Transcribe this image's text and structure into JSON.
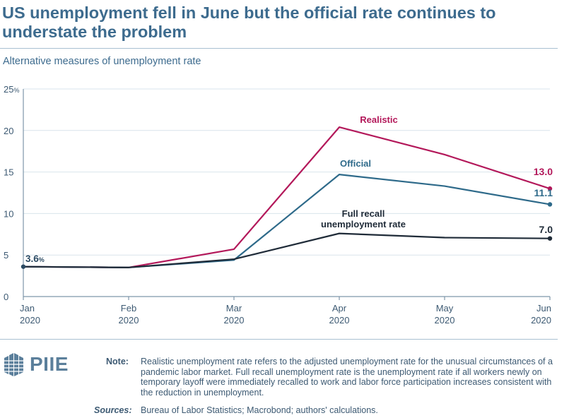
{
  "header": {
    "title": "US unemployment fell in June but the official rate continues to understate the problem",
    "subtitle": "Alternative measures of unemployment rate"
  },
  "chart_data": {
    "type": "line",
    "categories": [
      [
        "Jan",
        "2020"
      ],
      [
        "Feb",
        "2020"
      ],
      [
        "Mar",
        "2020"
      ],
      [
        "Apr",
        "2020"
      ],
      [
        "May",
        "2020"
      ],
      [
        "Jun",
        "2020"
      ]
    ],
    "ylim": [
      0,
      25
    ],
    "yticks": [
      0,
      5,
      10,
      15,
      20,
      25
    ],
    "ytick_labels": [
      "0",
      "5",
      "10",
      "15",
      "20",
      "25%"
    ],
    "grid": true,
    "series": [
      {
        "name": "Realistic",
        "color": "#b3185a",
        "values": [
          3.6,
          3.5,
          5.7,
          20.4,
          17.1,
          13.0
        ],
        "end_label": "13.0"
      },
      {
        "name": "Official",
        "color": "#2e6a8a",
        "values": [
          3.6,
          3.5,
          4.4,
          14.7,
          13.3,
          11.1
        ],
        "end_label": "11.1"
      },
      {
        "name": "Full recall unemployment rate",
        "color": "#1f2b38",
        "values": [
          3.6,
          3.5,
          4.5,
          7.6,
          7.1,
          7.0
        ],
        "end_label": "7.0"
      }
    ],
    "start_label": "3.6%"
  },
  "footer": {
    "logo_text": "PIIE",
    "note_label": "Note:",
    "note_text": "Realistic unemployment rate refers to the adjusted unemployment rate for the unusual circumstances of a pandemic labor market. Full recall unemployment rate is the unemployment rate if all workers newly on temporary layoff were immediately recalled to work and labor force participation increases consistent with the reduction in unemployment.",
    "sources_label": "Sources:",
    "sources_text": "Bureau of Labor Statistics; Macrobond; authors' calculations."
  },
  "colors": {
    "title": "#3d6b8e",
    "grid": "#d9e4ec",
    "axis": "#3d5a73"
  }
}
